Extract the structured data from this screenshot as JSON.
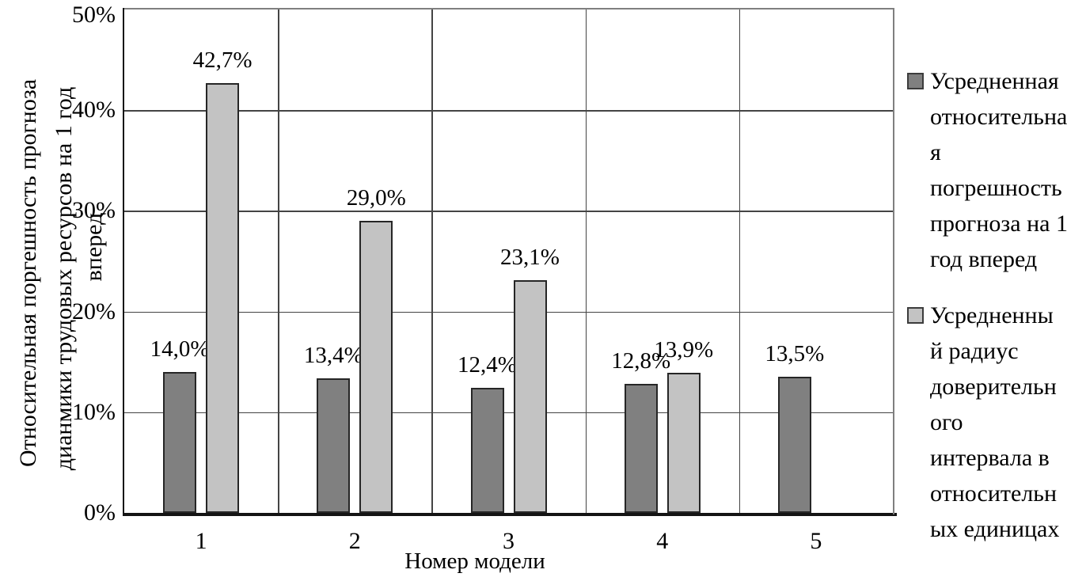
{
  "figure": {
    "background": "#ffffff",
    "axis_title_y_lines": [
      "Относительная поргешность прогноза",
      "дианмики трудовых ресурсов на 1 год",
      "вперед"
    ]
  },
  "chart_data": {
    "type": "bar",
    "title": "",
    "categories": [
      "1",
      "2",
      "3",
      "4",
      "5"
    ],
    "series": [
      {
        "name": "Усредненная относительная погрешность прогноза на 1 год вперед",
        "color": "#808080",
        "border_color": "#262626",
        "values": [
          14.0,
          13.4,
          12.4,
          12.8,
          13.5
        ],
        "data_labels": [
          "14,0%",
          "13,4%",
          "12,4%",
          "12,8%",
          "13,5%"
        ]
      },
      {
        "name": "Усредненный радиус доверительного интервала в относительных единицах",
        "color": "#c3c3c3",
        "border_color": "#262626",
        "values": [
          42.7,
          29.0,
          23.1,
          13.9,
          null
        ],
        "data_labels": [
          "42,7%",
          "29,0%",
          "23,1%",
          "13,9%",
          null
        ]
      }
    ],
    "xlabel": "Номер модели",
    "ylabel": "Относительная поргешность прогноза дианмики трудовых ресурсов на 1 год вперед",
    "ylim": [
      0,
      50
    ],
    "yticks": [
      {
        "value": 0,
        "label": "0%"
      },
      {
        "value": 10,
        "label": "10%"
      },
      {
        "value": 20,
        "label": "20%"
      },
      {
        "value": 30,
        "label": "30%"
      },
      {
        "value": 40,
        "label": "40%"
      },
      {
        "value": 50,
        "label": "50%"
      }
    ],
    "grid": "both",
    "legend_position": "right"
  },
  "legend": {
    "entries": [
      {
        "swatch_color": "#808080",
        "lines": [
          "Усредненная",
          "относительна",
          "я",
          "погрешность",
          "прогноза на 1",
          "год вперед"
        ]
      },
      {
        "swatch_color": "#c3c3c3",
        "lines": [
          "Усредненны",
          "й радиус",
          "доверительн",
          "ого",
          "интервала в",
          "относительн",
          "ых единицах"
        ]
      }
    ]
  }
}
